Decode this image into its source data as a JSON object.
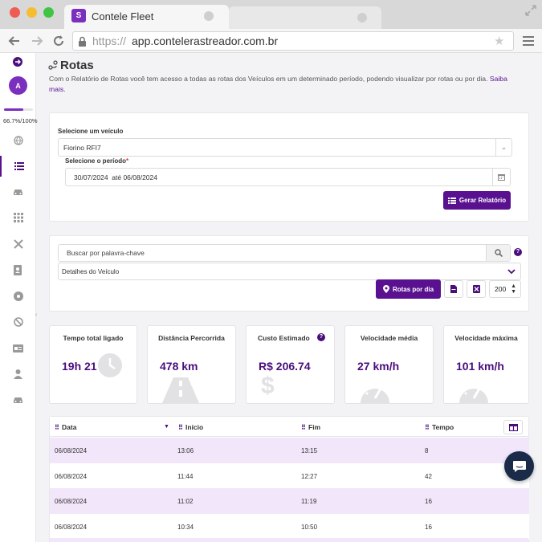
{
  "browser": {
    "tab_title": "Contele Fleet",
    "url_scheme": "https://",
    "url_host": "app.contelerastreador.com.br"
  },
  "sidebar": {
    "avatar_letter": "A",
    "progress_label": "66.7%/100%",
    "progress_value": 0.667
  },
  "page": {
    "title": "Rotas",
    "description": "Com o Relatório de Rotas você tem acesso a todas as rotas dos Veículos em um determinado período, podendo visualizar por rotas ou por dia.",
    "learn_more": "Saiba mais."
  },
  "filter": {
    "vehicle_label": "Selecione um veículo",
    "vehicle_value": "Fiorino RFI7",
    "period_label": "Selecione o período",
    "period_required": "*",
    "period_value": "30/07/2024  até 06/08/2024",
    "generate_button": "Gerar Relatório"
  },
  "search": {
    "placeholder": "Buscar por palavra-chave",
    "details_select": "Detalhes do Veículo",
    "routes_button": "Rotas por dia",
    "page_size": "200"
  },
  "stats": [
    {
      "title": "Tempo total ligado",
      "value": "19h 21"
    },
    {
      "title": "Distância Percorrida",
      "value": "478 km"
    },
    {
      "title": "Custo Estimado",
      "value": "R$ 206.74"
    },
    {
      "title": "Velocidade média",
      "value": "27 km/h"
    },
    {
      "title": "Velocidade máxima",
      "value": "101 km/h"
    }
  ],
  "table": {
    "columns": [
      "Data",
      "Início",
      "Fim",
      "Tempo"
    ],
    "rows": [
      [
        "06/08/2024",
        "13:06",
        "13:15",
        "8"
      ],
      [
        "06/08/2024",
        "11:44",
        "12:27",
        "42"
      ],
      [
        "06/08/2024",
        "11:02",
        "11:19",
        "16"
      ],
      [
        "06/08/2024",
        "10:34",
        "10:50",
        "16"
      ]
    ]
  },
  "colors": {
    "brand": "#5a1190",
    "row_highlight": "#f1e6fa"
  }
}
